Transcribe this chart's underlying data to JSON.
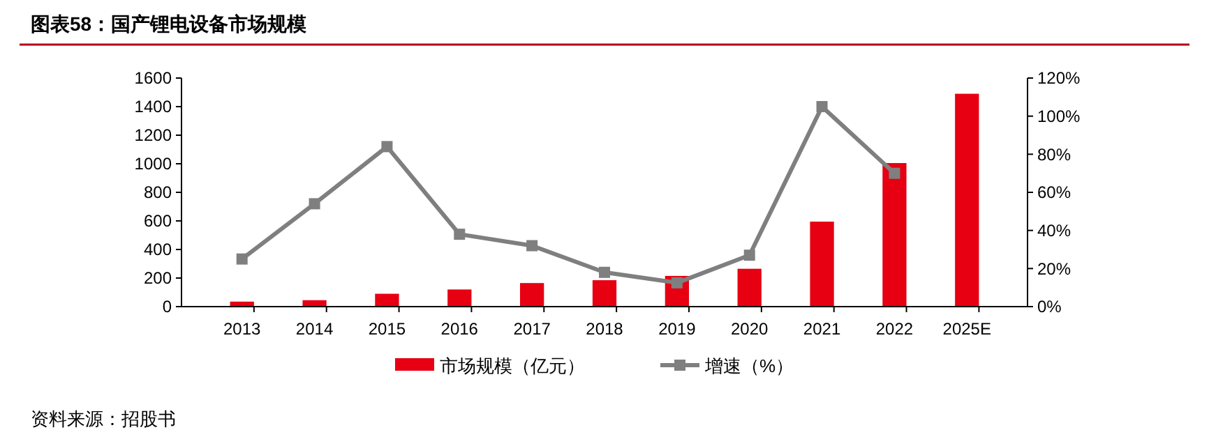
{
  "chart_data": {
    "type": "bar",
    "title": "图表58：国产锂电设备市场规模",
    "categories": [
      "2013",
      "2014",
      "2015",
      "2016",
      "2017",
      "2018",
      "2019",
      "2020",
      "2021",
      "2022",
      "2025E"
    ],
    "series": [
      {
        "name": "市场规模（亿元）",
        "color": "#e60012",
        "values": [
          35,
          45,
          90,
          120,
          165,
          185,
          215,
          265,
          595,
          1005,
          1490
        ]
      },
      {
        "name": "增速（%）",
        "type": "line",
        "axis": "y2",
        "color": "#7f7f7f",
        "marker": "square",
        "values": [
          25,
          54,
          84,
          38,
          32,
          18,
          12.5,
          27,
          105,
          70,
          null
        ]
      }
    ],
    "ylim": [
      0,
      1600
    ],
    "yticks": [
      0,
      200,
      400,
      600,
      800,
      1000,
      1200,
      1400,
      1600
    ],
    "y2lim": [
      0,
      120
    ],
    "y2ticks": [
      {
        "value": 0,
        "label": "0%"
      },
      {
        "value": 20,
        "label": "20%"
      },
      {
        "value": 40,
        "label": "40%"
      },
      {
        "value": 60,
        "label": "60%"
      },
      {
        "value": 80,
        "label": "80%"
      },
      {
        "value": 100,
        "label": "100%"
      },
      {
        "value": 120,
        "label": "120%"
      }
    ],
    "legend": "bottom",
    "annotations": [
      "资料来源：招股书"
    ]
  }
}
